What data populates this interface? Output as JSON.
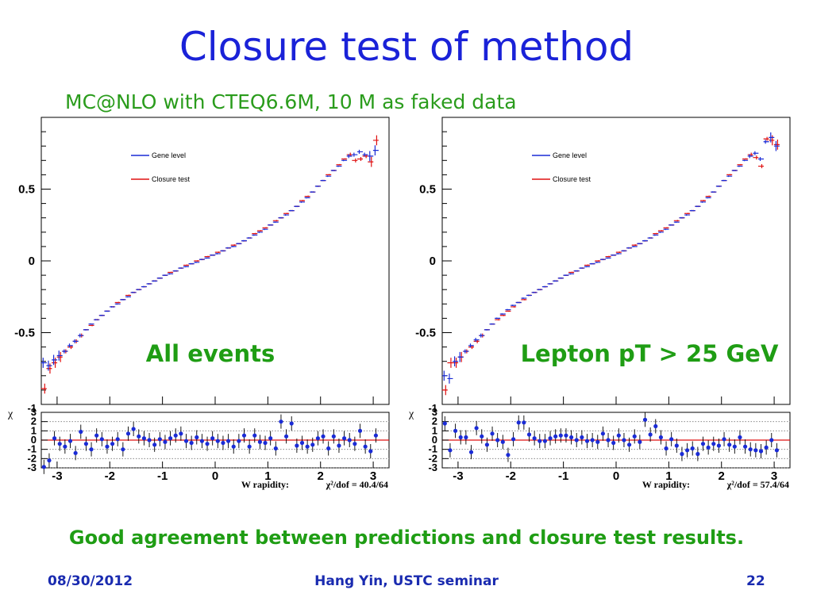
{
  "slide": {
    "title": "Closure test of method",
    "subtitle": "MC@NLO with CTEQ6.6M, 10 M as faked data",
    "caption": "Good agreement between predictions and closure test results.",
    "footer_date": "08/30/2012",
    "footer_center": "Hang Yin, USTC seminar",
    "footer_page": "22"
  },
  "colors": {
    "title": "#1a22d8",
    "green": "#1f9d14",
    "gene": "#1a2bd6",
    "closure": "#e01010"
  },
  "chart_data": [
    {
      "type": "scatter",
      "label": "All events",
      "legend": [
        "Gene level",
        "Closure test"
      ],
      "legend_position": "top-left inside plot",
      "x": [
        -3.25,
        -3.15,
        -3.05,
        -2.95,
        -2.85,
        -2.75,
        -2.65,
        -2.55,
        -2.45,
        -2.35,
        -2.25,
        -2.15,
        -2.05,
        -1.95,
        -1.85,
        -1.75,
        -1.65,
        -1.55,
        -1.45,
        -1.35,
        -1.25,
        -1.15,
        -1.05,
        -0.95,
        -0.85,
        -0.75,
        -0.65,
        -0.55,
        -0.45,
        -0.35,
        -0.25,
        -0.15,
        -0.05,
        0.05,
        0.15,
        0.25,
        0.35,
        0.45,
        0.55,
        0.65,
        0.75,
        0.85,
        0.95,
        1.05,
        1.15,
        1.25,
        1.35,
        1.45,
        1.55,
        1.65,
        1.75,
        1.85,
        1.95,
        2.05,
        2.15,
        2.25,
        2.35,
        2.45,
        2.55,
        2.65,
        2.75,
        2.85,
        2.95,
        3.05
      ],
      "gene": [
        -0.71,
        -0.73,
        -0.69,
        -0.66,
        -0.63,
        -0.59,
        -0.56,
        -0.52,
        -0.48,
        -0.44,
        -0.41,
        -0.38,
        -0.35,
        -0.32,
        -0.3,
        -0.27,
        -0.25,
        -0.22,
        -0.2,
        -0.18,
        -0.16,
        -0.14,
        -0.12,
        -0.1,
        -0.09,
        -0.07,
        -0.05,
        -0.04,
        -0.02,
        -0.01,
        0.01,
        0.02,
        0.04,
        0.05,
        0.07,
        0.09,
        0.1,
        0.12,
        0.14,
        0.16,
        0.18,
        0.2,
        0.22,
        0.25,
        0.27,
        0.3,
        0.32,
        0.35,
        0.38,
        0.41,
        0.44,
        0.48,
        0.52,
        0.56,
        0.59,
        0.63,
        0.66,
        0.7,
        0.73,
        0.74,
        0.76,
        0.74,
        0.73,
        0.77
      ],
      "closure": [
        -0.89,
        -0.75,
        -0.71,
        -0.67,
        -0.63,
        -0.6,
        -0.56,
        -0.52,
        -0.48,
        -0.45,
        -0.41,
        -0.38,
        -0.35,
        -0.32,
        -0.29,
        -0.27,
        -0.24,
        -0.22,
        -0.2,
        -0.18,
        -0.16,
        -0.14,
        -0.12,
        -0.1,
        -0.08,
        -0.07,
        -0.05,
        -0.03,
        -0.02,
        0.0,
        0.01,
        0.03,
        0.04,
        0.06,
        0.07,
        0.09,
        0.11,
        0.12,
        0.14,
        0.16,
        0.19,
        0.21,
        0.23,
        0.25,
        0.28,
        0.3,
        0.33,
        0.35,
        0.38,
        0.42,
        0.45,
        0.48,
        0.52,
        0.56,
        0.6,
        0.63,
        0.67,
        0.71,
        0.74,
        0.7,
        0.71,
        0.73,
        0.69,
        0.84
      ],
      "chi": [
        -2.9,
        -2.2,
        0.2,
        -0.4,
        -0.7,
        -0.1,
        -1.4,
        0.9,
        -0.4,
        -1.0,
        0.5,
        0.1,
        -0.7,
        -0.4,
        0.1,
        -1.0,
        0.7,
        1.2,
        0.4,
        0.2,
        0.0,
        -0.5,
        0.1,
        -0.2,
        0.2,
        0.5,
        0.7,
        -0.1,
        -0.3,
        0.3,
        -0.1,
        -0.4,
        0.2,
        -0.1,
        -0.3,
        -0.1,
        -0.7,
        -0.1,
        0.5,
        -0.7,
        0.5,
        -0.2,
        -0.3,
        0.2,
        -0.9,
        2.0,
        0.4,
        1.8,
        -0.6,
        -0.3,
        -0.7,
        -0.5,
        0.2,
        0.4,
        -0.9,
        0.4,
        -0.6,
        0.2,
        0.0,
        -0.4,
        1.0,
        -0.7,
        -1.2,
        0.5
      ],
      "ylim": [
        -1,
        1
      ],
      "yticks": [
        "0.5",
        "0",
        "-0.5"
      ],
      "chi_label": "χ",
      "chi_ylim": [
        -3,
        3
      ],
      "chi_ticks": [
        "3",
        "2",
        "1",
        "0",
        "-1",
        "-2",
        "-3"
      ],
      "chi_top_label": "-1",
      "xlim": [
        -3.3,
        3.3
      ],
      "xticks": [
        "-3",
        "-2",
        "-1",
        "0",
        "1",
        "2",
        "3"
      ],
      "xlabel": "W rapidity:",
      "chi2": "χ²/dof = 40.4/64"
    },
    {
      "type": "scatter",
      "label": "Lepton pT > 25 GeV",
      "legend": [
        "Gene level",
        "Closure test"
      ],
      "legend_position": "top-left inside plot",
      "x": [
        -3.25,
        -3.15,
        -3.05,
        -2.95,
        -2.85,
        -2.75,
        -2.65,
        -2.55,
        -2.45,
        -2.35,
        -2.25,
        -2.15,
        -2.05,
        -1.95,
        -1.85,
        -1.75,
        -1.65,
        -1.55,
        -1.45,
        -1.35,
        -1.25,
        -1.15,
        -1.05,
        -0.95,
        -0.85,
        -0.75,
        -0.65,
        -0.55,
        -0.45,
        -0.35,
        -0.25,
        -0.15,
        -0.05,
        0.05,
        0.15,
        0.25,
        0.35,
        0.45,
        0.55,
        0.65,
        0.75,
        0.85,
        0.95,
        1.05,
        1.15,
        1.25,
        1.35,
        1.45,
        1.55,
        1.65,
        1.75,
        1.85,
        1.95,
        2.05,
        2.15,
        2.25,
        2.35,
        2.45,
        2.55,
        2.65,
        2.75,
        2.85,
        2.95,
        3.05
      ],
      "gene": [
        -0.8,
        -0.82,
        -0.7,
        -0.67,
        -0.63,
        -0.59,
        -0.55,
        -0.52,
        -0.48,
        -0.44,
        -0.4,
        -0.37,
        -0.34,
        -0.31,
        -0.29,
        -0.26,
        -0.24,
        -0.22,
        -0.2,
        -0.18,
        -0.16,
        -0.14,
        -0.12,
        -0.1,
        -0.09,
        -0.07,
        -0.05,
        -0.04,
        -0.02,
        -0.01,
        0.01,
        0.02,
        0.04,
        0.05,
        0.07,
        0.09,
        0.1,
        0.12,
        0.14,
        0.16,
        0.18,
        0.2,
        0.22,
        0.25,
        0.27,
        0.3,
        0.32,
        0.35,
        0.38,
        0.41,
        0.44,
        0.48,
        0.52,
        0.56,
        0.59,
        0.63,
        0.66,
        0.7,
        0.73,
        0.75,
        0.71,
        0.83,
        0.86,
        0.8
      ],
      "closure": [
        -0.9,
        -0.71,
        -0.71,
        -0.67,
        -0.63,
        -0.6,
        -0.56,
        -0.52,
        -0.48,
        -0.44,
        -0.41,
        -0.38,
        -0.35,
        -0.32,
        -0.29,
        -0.27,
        -0.24,
        -0.22,
        -0.2,
        -0.18,
        -0.16,
        -0.14,
        -0.12,
        -0.1,
        -0.08,
        -0.07,
        -0.05,
        -0.03,
        -0.02,
        0.0,
        0.01,
        0.03,
        0.04,
        0.06,
        0.07,
        0.09,
        0.11,
        0.12,
        0.14,
        0.16,
        0.19,
        0.21,
        0.23,
        0.25,
        0.28,
        0.3,
        0.33,
        0.35,
        0.38,
        0.42,
        0.45,
        0.48,
        0.52,
        0.56,
        0.6,
        0.63,
        0.67,
        0.71,
        0.74,
        0.72,
        0.66,
        0.85,
        0.84,
        0.81
      ],
      "chi": [
        1.8,
        -1.1,
        1.0,
        0.3,
        0.3,
        -1.3,
        1.3,
        0.4,
        -0.5,
        0.7,
        0.0,
        -0.2,
        -1.6,
        0.1,
        1.9,
        1.9,
        0.6,
        0.2,
        -0.1,
        -0.1,
        0.2,
        0.4,
        0.5,
        0.5,
        0.3,
        0.0,
        0.3,
        -0.1,
        0.0,
        -0.2,
        0.7,
        0.0,
        -0.3,
        0.5,
        0.0,
        -0.5,
        0.4,
        -0.2,
        2.2,
        0.6,
        1.5,
        0.3,
        -0.9,
        0.1,
        -0.6,
        -1.5,
        -1.1,
        -0.9,
        -1.5,
        -0.4,
        -0.8,
        -0.4,
        -0.6,
        0.1,
        -0.5,
        -0.7,
        0.3,
        -0.7,
        -1.0,
        -1.1,
        -1.2,
        -0.8,
        0.0,
        -1.1
      ],
      "ylim": [
        -1,
        1
      ],
      "yticks": [
        "0.5",
        "0",
        "-0.5"
      ],
      "chi_label": "χ",
      "chi_ylim": [
        -3,
        3
      ],
      "chi_ticks": [
        "3",
        "2",
        "1",
        "0",
        "-1",
        "-2",
        "-3"
      ],
      "chi_top_label": "-1",
      "xlim": [
        -3.3,
        3.3
      ],
      "xticks": [
        "-3",
        "-2",
        "-1",
        "0",
        "1",
        "2",
        "3"
      ],
      "xlabel": "W rapidity:",
      "chi2": "χ²/dof = 57.4/64"
    }
  ]
}
